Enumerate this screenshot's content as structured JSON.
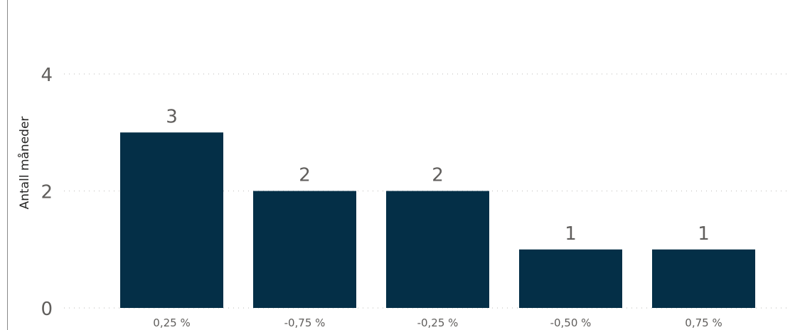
{
  "chart_data": {
    "type": "bar",
    "title": "",
    "xlabel": "",
    "ylabel": "Antall måneder",
    "categories": [
      "0,25 %",
      "-0,75 %",
      "-0,25 %",
      "-0,50 %",
      "0,75 %"
    ],
    "values": [
      3,
      2,
      2,
      1,
      1
    ],
    "data_labels": [
      "3",
      "2",
      "2",
      "1",
      "1"
    ],
    "ylim": [
      0,
      4
    ],
    "yticks": [
      "0",
      "2",
      "4"
    ],
    "grid": true,
    "bar_color": "#042f47",
    "grid_color": "#c8c6c4",
    "text_color": "#605e5c"
  }
}
